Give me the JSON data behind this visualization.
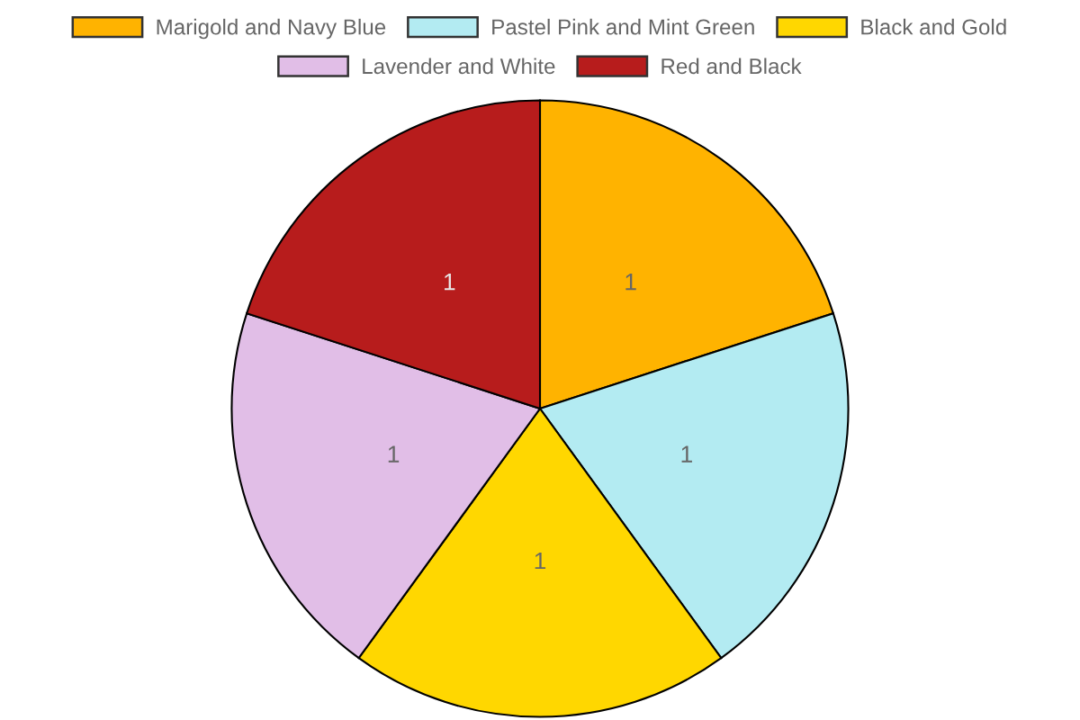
{
  "chart_data": {
    "type": "pie",
    "categories": [
      "Marigold and Navy Blue",
      "Pastel Pink and Mint Green",
      "Black and Gold",
      "Lavender and White",
      "Red and Black"
    ],
    "values": [
      1,
      1,
      1,
      1,
      1
    ],
    "colors": [
      "#ffb300",
      "#b3ebf2",
      "#ffd700",
      "#e1bee7",
      "#b71c1c"
    ],
    "data_labels": true,
    "legend": "top"
  }
}
